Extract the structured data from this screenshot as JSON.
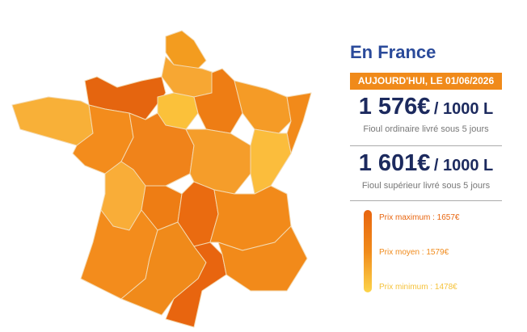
{
  "title": "En France",
  "date_banner": "AUJOURD'HUI, LE 01/06/2026",
  "prices": [
    {
      "amount": "1 576€",
      "unit": "/ 1000 L",
      "label": "Fioul ordinaire livré sous 5 jours"
    },
    {
      "amount": "1 601€",
      "unit": "/ 1000 L",
      "label": "Fioul supérieur livré sous 5 jours"
    }
  ],
  "legend": [
    {
      "label": "Prix maximum : 1657€"
    },
    {
      "label": "Prix moyen : 1579€"
    },
    {
      "label": "Prix minimum : 1478€"
    }
  ]
}
